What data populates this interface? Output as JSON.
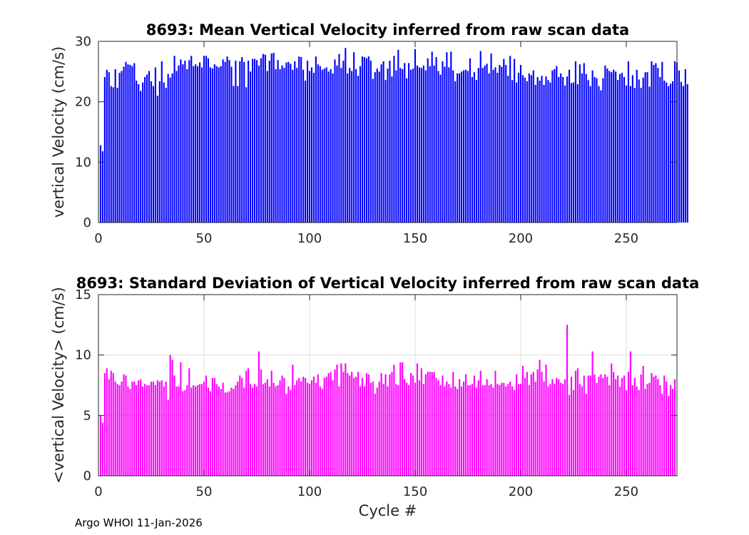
{
  "chart_data": [
    {
      "type": "bar",
      "title": "8693: Mean Vertical Velocity inferred from raw scan data",
      "xlabel": "",
      "ylabel": "vertical Velocity (cm/s)",
      "xlim": [
        0,
        274
      ],
      "ylim": [
        0,
        30
      ],
      "xticks": [
        0,
        50,
        100,
        150,
        200,
        250
      ],
      "yticks": [
        0,
        10,
        20,
        30
      ],
      "grid": false,
      "color": "#0000ff",
      "x_start": 1,
      "values": [
        12.8,
        11.8,
        24.1,
        25.3,
        24.9,
        22.6,
        22.4,
        25.4,
        22.3,
        24.8,
        25.1,
        25.8,
        26.6,
        26.2,
        26.1,
        25.9,
        26.4,
        23.5,
        22.9,
        21.8,
        23.2,
        24.1,
        24.5,
        25.1,
        23.4,
        22.6,
        25.7,
        21.0,
        23.4,
        26.7,
        23.2,
        22.3,
        24.6,
        24.0,
        24.7,
        27.6,
        25.1,
        26.0,
        27.0,
        26.2,
        26.8,
        25.4,
        26.9,
        27.6,
        25.9,
        26.2,
        25.9,
        26.5,
        25.7,
        27.6,
        27.6,
        27.2,
        25.7,
        25.5,
        26.2,
        25.9,
        25.7,
        25.9,
        27.0,
        26.6,
        27.5,
        26.9,
        25.8,
        22.6,
        26.8,
        22.6,
        26.7,
        27.4,
        26.6,
        22.4,
        26.8,
        25.0,
        27.1,
        27.1,
        26.9,
        26.0,
        27.2,
        27.9,
        27.8,
        25.1,
        26.8,
        28.0,
        28.1,
        25.4,
        26.9,
        25.4,
        26.0,
        25.6,
        26.5,
        26.6,
        26.3,
        25.3,
        26.7,
        25.6,
        27.5,
        27.4,
        25.3,
        23.5,
        26.8,
        25.1,
        25.7,
        24.8,
        27.5,
        26.2,
        25.9,
        25.3,
        25.5,
        25.7,
        25.0,
        25.4,
        24.7,
        27.0,
        26.0,
        27.9,
        25.6,
        26.8,
        28.9,
        24.7,
        25.6,
        25.1,
        28.2,
        25.4,
        24.3,
        25.9,
        27.5,
        27.4,
        27.2,
        27.5,
        26.8,
        23.8,
        24.9,
        25.5,
        25.0,
        26.2,
        26.7,
        23.6,
        25.5,
        26.8,
        24.2,
        27.6,
        25.2,
        28.6,
        25.6,
        25.4,
        26.4,
        23.9,
        26.4,
        25.3,
        25.5,
        28.7,
        26.0,
        25.7,
        25.6,
        26.0,
        25.2,
        27.2,
        25.9,
        28.3,
        26.0,
        27.4,
        25.1,
        24.5,
        26.7,
        25.8,
        28.2,
        25.7,
        28.3,
        25.2,
        23.4,
        24.7,
        24.7,
        25.0,
        25.2,
        25.3,
        25.1,
        27.2,
        24.1,
        24.9,
        23.6,
        25.6,
        28.4,
        25.6,
        26.0,
        26.3,
        24.7,
        28.0,
        25.3,
        25.7,
        24.8,
        26.1,
        25.8,
        27.1,
        26.1,
        24.3,
        27.6,
        23.6,
        27.1,
        23.2,
        24.8,
        26.1,
        24.4,
        24.0,
        23.4,
        24.7,
        24.4,
        25.2,
        22.8,
        24.1,
        23.5,
        24.3,
        22.8,
        24.2,
        23.6,
        23.2,
        25.2,
        25.4,
        25.9,
        24.1,
        24.7,
        24.1,
        22.7,
        24.2,
        25.3,
        23.1,
        23.2,
        26.7,
        22.9,
        26.2,
        24.7,
        26.4,
        24.6,
        23.6,
        22.6,
        25.2,
        24.1,
        23.9,
        22.6,
        21.9,
        23.9,
        26.0,
        25.5,
        25.1,
        24.9,
        25.3,
        25.0,
        23.6,
        24.6,
        24.8,
        24.1,
        22.7,
        26.7,
        22.6,
        24.4,
        22.3,
        25.3,
        23.7,
        22.3,
        24.0,
        24.9,
        24.9,
        22.5,
        26.7,
        26.1,
        26.4,
        25.6,
        24.1,
        26.6,
        23.5,
        23.2,
        22.6,
        23.0,
        23.4,
        26.7,
        26.5,
        25.2,
        23.3,
        22.6,
        25.4,
        22.9
      ]
    },
    {
      "type": "bar",
      "title": "8693: Standard Deviation of Vertical Velocity inferred from raw scan data",
      "xlabel": "Cycle #",
      "ylabel": "<vertical Velocity> (cm/s)",
      "xlim": [
        0,
        274
      ],
      "ylim": [
        0,
        15
      ],
      "xticks": [
        0,
        50,
        100,
        150,
        200,
        250
      ],
      "yticks": [
        0,
        5,
        10,
        15
      ],
      "grid": true,
      "color": "#ff00ff",
      "x_start": 1,
      "values": [
        5.0,
        4.4,
        8.5,
        8.9,
        8.0,
        8.7,
        8.5,
        7.8,
        7.6,
        7.5,
        7.8,
        8.4,
        8.3,
        7.4,
        7.2,
        7.8,
        7.8,
        7.5,
        7.9,
        8.0,
        7.4,
        7.6,
        7.5,
        7.5,
        7.8,
        7.8,
        7.5,
        7.9,
        7.8,
        7.9,
        7.4,
        7.8,
        6.3,
        10.0,
        9.6,
        8.3,
        7.4,
        7.4,
        9.4,
        7.0,
        7.1,
        7.5,
        8.9,
        7.3,
        7.5,
        7.4,
        7.5,
        7.6,
        7.6,
        7.8,
        8.3,
        7.3,
        7.0,
        8.1,
        8.1,
        7.6,
        7.4,
        7.2,
        7.7,
        6.9,
        6.9,
        7.0,
        7.3,
        7.2,
        7.5,
        7.8,
        8.3,
        8.1,
        7.3,
        8.7,
        8.9,
        7.6,
        7.3,
        7.6,
        7.4,
        10.3,
        8.8,
        7.6,
        7.7,
        8.0,
        7.4,
        8.7,
        7.7,
        7.4,
        7.5,
        7.9,
        8.3,
        8.1,
        6.8,
        7.4,
        7.1,
        9.2,
        7.5,
        7.9,
        8.1,
        7.8,
        8.2,
        8.1,
        7.7,
        7.6,
        7.9,
        8.2,
        7.7,
        8.4,
        7.4,
        7.2,
        8.1,
        8.2,
        8.5,
        8.6,
        7.9,
        8.8,
        9.2,
        7.4,
        9.3,
        8.6,
        9.3,
        8.5,
        8.3,
        8.6,
        8.1,
        8.2,
        8.6,
        7.4,
        8.1,
        7.4,
        8.5,
        8.4,
        7.7,
        7.8,
        6.8,
        7.3,
        7.8,
        8.5,
        7.6,
        8.4,
        7.4,
        8.4,
        8.6,
        9.2,
        7.6,
        7.5,
        9.4,
        9.4,
        8.0,
        7.7,
        7.5,
        8.5,
        8.3,
        7.7,
        9.3,
        7.9,
        8.9,
        7.6,
        8.4,
        8.6,
        8.6,
        8.6,
        8.6,
        8.1,
        7.9,
        7.5,
        8.3,
        7.4,
        7.8,
        7.6,
        7.3,
        8.6,
        7.4,
        7.2,
        8.0,
        7.4,
        7.8,
        8.4,
        7.5,
        7.5,
        7.6,
        8.3,
        7.3,
        7.9,
        8.7,
        7.5,
        7.5,
        8.0,
        7.5,
        7.6,
        7.3,
        8.7,
        7.6,
        7.5,
        7.7,
        7.7,
        7.4,
        7.6,
        7.8,
        7.4,
        7.1,
        8.4,
        7.6,
        7.6,
        9.1,
        8.1,
        8.6,
        7.5,
        8.4,
        8.6,
        7.8,
        8.8,
        9.6,
        8.6,
        7.8,
        9.2,
        7.4,
        7.6,
        8.0,
        7.6,
        8.1,
        8.0,
        7.7,
        7.6,
        8.0,
        12.5,
        6.7,
        8.2,
        7.1,
        8.7,
        8.9,
        7.6,
        7.4,
        8.3,
        6.8,
        8.3,
        8.3,
        10.3,
        8.4,
        7.7,
        8.2,
        8.4,
        8.1,
        8.4,
        8.2,
        7.5,
        9.3,
        8.6,
        8.0,
        8.3,
        7.4,
        8.1,
        8.3,
        7.1,
        8.6,
        10.3,
        7.5,
        8.1,
        7.4,
        7.1,
        8.4,
        9.1,
        7.2,
        7.6,
        7.7,
        8.5,
        8.2,
        8.3,
        8.0,
        7.5,
        6.8,
        8.3,
        7.8,
        6.6,
        7.5,
        7.2,
        8.0
      ]
    }
  ],
  "footer_text": "Argo WHOI 11-Jan-2026"
}
